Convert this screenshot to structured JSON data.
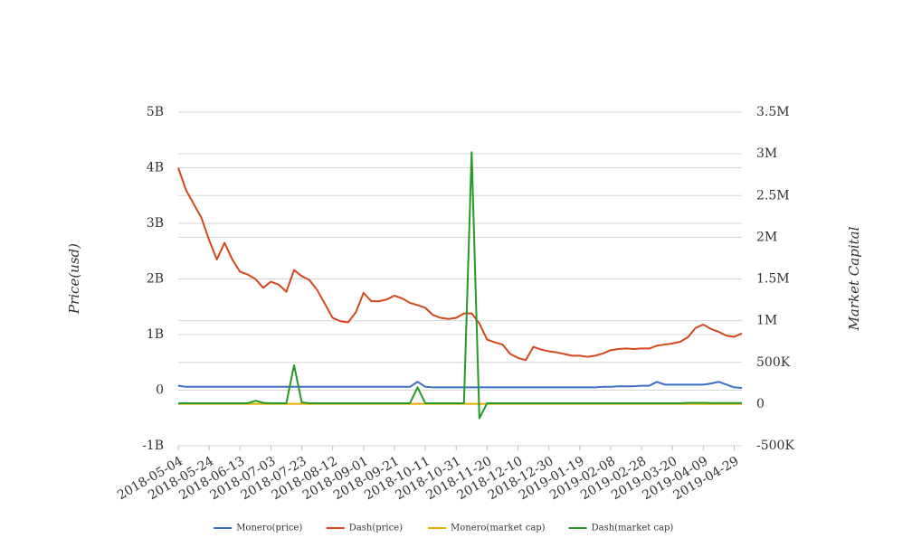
{
  "chart_data": {
    "type": "line",
    "y_label": "Price(usd)",
    "y2_label": "Market Capital",
    "x": [
      "2018-05-04",
      "2018-05-09",
      "2018-05-14",
      "2018-05-19",
      "2018-05-24",
      "2018-05-29",
      "2018-06-03",
      "2018-06-08",
      "2018-06-13",
      "2018-06-18",
      "2018-06-23",
      "2018-06-28",
      "2018-07-03",
      "2018-07-08",
      "2018-07-13",
      "2018-07-18",
      "2018-07-23",
      "2018-07-28",
      "2018-08-02",
      "2018-08-07",
      "2018-08-12",
      "2018-08-17",
      "2018-08-22",
      "2018-08-27",
      "2018-09-01",
      "2018-09-06",
      "2018-09-11",
      "2018-09-16",
      "2018-09-21",
      "2018-09-26",
      "2018-10-01",
      "2018-10-06",
      "2018-10-11",
      "2018-10-16",
      "2018-10-21",
      "2018-10-26",
      "2018-10-31",
      "2018-11-05",
      "2018-11-10",
      "2018-11-15",
      "2018-11-20",
      "2018-11-25",
      "2018-11-30",
      "2018-12-05",
      "2018-12-10",
      "2018-12-15",
      "2018-12-20",
      "2018-12-25",
      "2018-12-30",
      "2019-01-04",
      "2019-01-09",
      "2019-01-14",
      "2019-01-19",
      "2019-01-24",
      "2019-01-29",
      "2019-02-03",
      "2019-02-08",
      "2019-02-13",
      "2019-02-18",
      "2019-02-23",
      "2019-02-28",
      "2019-03-05",
      "2019-03-10",
      "2019-03-15",
      "2019-03-20",
      "2019-03-25",
      "2019-03-30",
      "2019-04-04",
      "2019-04-09",
      "2019-04-14",
      "2019-04-19",
      "2019-04-24",
      "2019-04-29",
      "2019-05-04"
    ],
    "xlim": [
      "2018-05-04",
      "2019-05-04"
    ],
    "xticks": [
      "2018-05-04",
      "2018-05-24",
      "2018-06-13",
      "2018-07-03",
      "2018-07-23",
      "2018-08-12",
      "2018-09-01",
      "2018-09-21",
      "2018-10-11",
      "2018-10-31",
      "2018-11-20",
      "2018-12-10",
      "2018-12-30",
      "2019-01-19",
      "2019-02-08",
      "2019-02-28",
      "2019-03-20",
      "2019-04-09",
      "2019-04-29"
    ],
    "ylim": [
      -1000000000.0,
      5000000000.0
    ],
    "yticks": [
      {
        "value": -1000000000.0,
        "label": "-1B"
      },
      0,
      {
        "value": 1000000000.0,
        "label": "1B"
      },
      {
        "value": 2000000000.0,
        "label": "2B"
      },
      {
        "value": 3000000000.0,
        "label": "3B"
      },
      {
        "value": 4000000000.0,
        "label": "4B"
      },
      {
        "value": 5000000000.0,
        "label": "5B"
      }
    ],
    "y2lim": [
      -500000,
      3500000
    ],
    "y2ticks": [
      {
        "value": -500000,
        "label": "-500K"
      },
      0,
      {
        "value": 500000,
        "label": "500K"
      },
      {
        "value": 1000000,
        "label": "1M"
      },
      {
        "value": 1500000,
        "label": "1.5M"
      },
      {
        "value": 2000000,
        "label": "2M"
      },
      {
        "value": 2500000,
        "label": "2.5M"
      },
      {
        "value": 3000000,
        "label": "3M"
      },
      {
        "value": 3500000,
        "label": "3.5M"
      }
    ],
    "grid": true,
    "legend": "bottom",
    "series": [
      {
        "name": "Monero(price)",
        "color": "#3a6fc4",
        "values": [
          80000000.0,
          60000000.0,
          60000000.0,
          60000000.0,
          60000000.0,
          60000000.0,
          60000000.0,
          60000000.0,
          60000000.0,
          60000000.0,
          60000000.0,
          60000000.0,
          60000000.0,
          60000000.0,
          60000000.0,
          60000000.0,
          60000000.0,
          60000000.0,
          60000000.0,
          60000000.0,
          60000000.0,
          60000000.0,
          60000000.0,
          60000000.0,
          60000000.0,
          60000000.0,
          60000000.0,
          60000000.0,
          60000000.0,
          60000000.0,
          60000000.0,
          150000000.0,
          60000000.0,
          50000000.0,
          50000000.0,
          50000000.0,
          50000000.0,
          50000000.0,
          50000000.0,
          50000000.0,
          50000000.0,
          50000000.0,
          50000000.0,
          50000000.0,
          50000000.0,
          50000000.0,
          50000000.0,
          50000000.0,
          50000000.0,
          50000000.0,
          50000000.0,
          50000000.0,
          50000000.0,
          50000000.0,
          50000000.0,
          60000000.0,
          60000000.0,
          70000000.0,
          70000000.0,
          70000000.0,
          80000000.0,
          80000000.0,
          150000000.0,
          100000000.0,
          100000000.0,
          100000000.0,
          100000000.0,
          100000000.0,
          100000000.0,
          120000000.0,
          150000000.0,
          100000000.0,
          50000000.0,
          40000000.0
        ]
      },
      {
        "name": "Dash(price)",
        "color": "#d4471c",
        "values": [
          4000000000.0,
          3600000000.0,
          3350000000.0,
          3100000000.0,
          2700000000.0,
          2350000000.0,
          2650000000.0,
          2350000000.0,
          2130000000.0,
          2080000000.0,
          2000000000.0,
          1840000000.0,
          1950000000.0,
          1900000000.0,
          1770000000.0,
          2160000000.0,
          2050000000.0,
          1980000000.0,
          1800000000.0,
          1550000000.0,
          1300000000.0,
          1240000000.0,
          1220000000.0,
          1400000000.0,
          1750000000.0,
          1600000000.0,
          1600000000.0,
          1630000000.0,
          1700000000.0,
          1650000000.0,
          1570000000.0,
          1530000000.0,
          1480000000.0,
          1350000000.0,
          1300000000.0,
          1280000000.0,
          1300000000.0,
          1380000000.0,
          1380000000.0,
          1200000000.0,
          910000000.0,
          860000000.0,
          820000000.0,
          650000000.0,
          580000000.0,
          540000000.0,
          780000000.0,
          730000000.0,
          700000000.0,
          680000000.0,
          650000000.0,
          620000000.0,
          620000000.0,
          600000000.0,
          620000000.0,
          660000000.0,
          720000000.0,
          740000000.0,
          750000000.0,
          740000000.0,
          750000000.0,
          750000000.0,
          800000000.0,
          820000000.0,
          840000000.0,
          870000000.0,
          950000000.0,
          1120000000.0,
          1180000000.0,
          1100000000.0,
          1050000000.0,
          980000000.0,
          960000000.0,
          1020000000.0
        ]
      },
      {
        "name": "Monero(market cap)",
        "color": "#e6ac00",
        "axis": "y2",
        "values": [
          3000,
          3000,
          3000,
          3000,
          3000,
          3000,
          3000,
          3000,
          3000,
          3000,
          3000,
          3000,
          3000,
          3000,
          3000,
          3000,
          3000,
          3000,
          3000,
          3000,
          3000,
          3000,
          3000,
          3000,
          3000,
          3000,
          3000,
          3000,
          3000,
          3000,
          3000,
          3000,
          3000,
          3000,
          3000,
          3000,
          3000,
          3000,
          3000,
          3000,
          3000,
          3000,
          3000,
          3000,
          3000,
          3000,
          3000,
          3000,
          3000,
          3000,
          3000,
          3000,
          3000,
          3000,
          3000,
          3000,
          3000,
          3000,
          3000,
          3000,
          3000,
          3000,
          3000,
          3000,
          3000,
          3000,
          3000,
          3000,
          3000,
          3000,
          3000,
          3000,
          3000,
          3000
        ]
      },
      {
        "name": "Dash(market cap)",
        "color": "#249a24",
        "axis": "y2",
        "values": [
          10000,
          10000,
          10000,
          10000,
          10000,
          10000,
          10000,
          10000,
          10000,
          10000,
          40000,
          15000,
          10000,
          10000,
          10000,
          465000,
          20000,
          10000,
          10000,
          10000,
          10000,
          10000,
          10000,
          10000,
          10000,
          10000,
          10000,
          10000,
          10000,
          10000,
          10000,
          200000,
          10000,
          10000,
          10000,
          10000,
          10000,
          10000,
          3020000,
          -170000,
          10000,
          10000,
          10000,
          10000,
          10000,
          10000,
          10000,
          10000,
          10000,
          10000,
          10000,
          10000,
          10000,
          10000,
          10000,
          10000,
          10000,
          10000,
          10000,
          10000,
          10000,
          10000,
          10000,
          10000,
          10000,
          10000,
          15000,
          15000,
          15000,
          12000,
          12000,
          12000,
          12000,
          12000
        ]
      }
    ]
  }
}
